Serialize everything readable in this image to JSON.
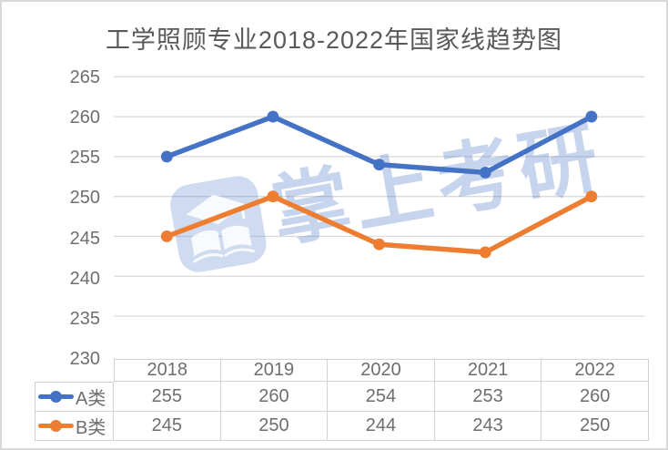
{
  "chart_data": {
    "type": "line",
    "title": "工学照顾专业2018-2022年国家线趋势图",
    "categories": [
      "2018",
      "2019",
      "2020",
      "2021",
      "2022"
    ],
    "series": [
      {
        "name": "A类",
        "color": "#4472C4",
        "values": [
          255,
          260,
          254,
          253,
          260
        ]
      },
      {
        "name": "B类",
        "color": "#ED7D31",
        "values": [
          245,
          250,
          244,
          243,
          250
        ]
      }
    ],
    "ylim": [
      230,
      265
    ],
    "y_tick_step": 5,
    "y_ticks": [
      "265",
      "260",
      "255",
      "250",
      "245",
      "240",
      "235",
      "230"
    ],
    "grid": true,
    "legend_position": "table-left",
    "data_table_shown": true
  },
  "watermark": {
    "text": "掌上考研",
    "logo": "graduation-cap-book",
    "color": "#4472C4"
  },
  "colors": {
    "series_a": "#4472C4",
    "series_b": "#ED7D31",
    "gridline": "#d9d9d9",
    "axis_text": "#6e6e6e",
    "title_text": "#595959",
    "table_border": "#d2d2d2",
    "frame_border": "#d9d9d9"
  }
}
